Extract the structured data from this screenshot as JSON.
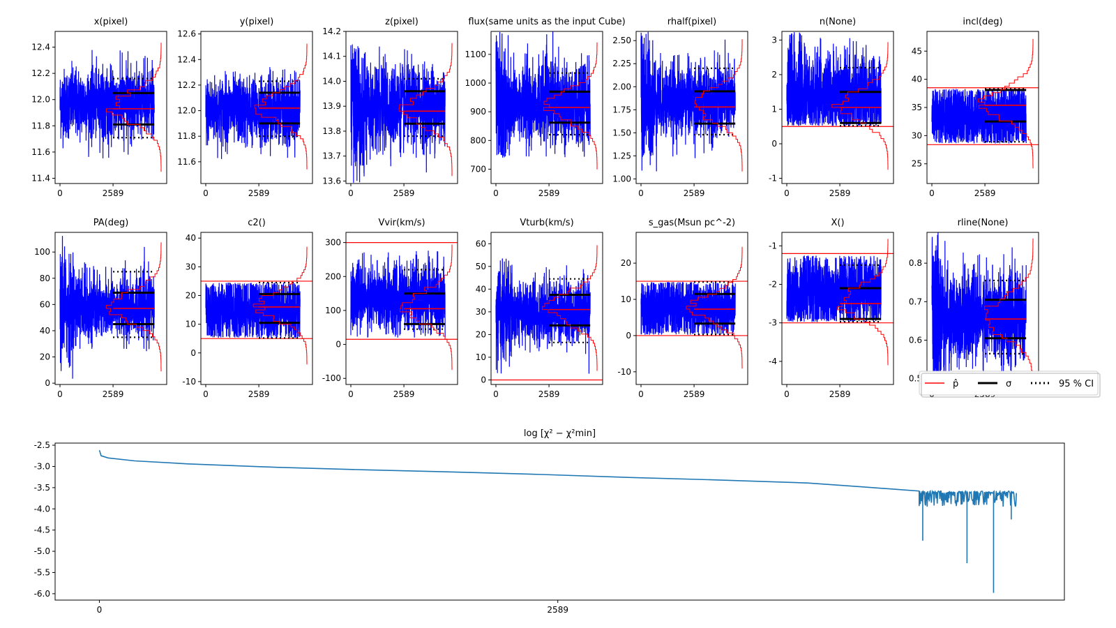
{
  "figure": {
    "legend": {
      "placement": "right of second-row last panel",
      "entries": [
        {
          "label": "p̂",
          "style": "solid",
          "color": "#ff0000"
        },
        {
          "label": "σ",
          "style": "solid-thick",
          "color": "#000000"
        },
        {
          "label": "95 % CI",
          "style": "dotted",
          "color": "#000000"
        }
      ]
    }
  },
  "chart_data": [
    {
      "type": "line",
      "title": "x(pixel)",
      "x_ticks": [
        "0",
        "2589"
      ],
      "y_ticks": [
        "11.4",
        "11.6",
        "11.8",
        "12.0",
        "12.2",
        "12.4"
      ],
      "ylim": [
        11.36,
        12.52
      ],
      "trace": {
        "center": 11.97,
        "spread": 0.13,
        "max": 12.38,
        "min": 11.55,
        "start_wide": false
      },
      "p_hat": 11.93,
      "sigma": [
        11.81,
        12.05
      ],
      "ci95": [
        11.71,
        12.16
      ],
      "colors": {
        "trace": "#0000ff",
        "stat": "#ff0000"
      }
    },
    {
      "type": "line",
      "title": "y(pixel)",
      "x_ticks": [
        "0",
        "2589"
      ],
      "y_ticks": [
        "11.6",
        "11.8",
        "12.0",
        "12.2",
        "12.4",
        "12.6"
      ],
      "ylim": [
        11.43,
        12.62
      ],
      "trace": {
        "center": 12.0,
        "spread": 0.13,
        "max": 12.39,
        "min": 11.62,
        "start_wide": false
      },
      "p_hat": 12.02,
      "sigma": [
        11.9,
        12.14
      ],
      "ci95": [
        11.8,
        12.23
      ],
      "colors": {
        "trace": "#0000ff",
        "stat": "#ff0000"
      }
    },
    {
      "type": "line",
      "title": "z(pixel)",
      "x_ticks": [
        "0",
        "2589"
      ],
      "y_ticks": [
        "13.6",
        "13.7",
        "13.8",
        "13.9",
        "14.0",
        "14.1",
        "14.2"
      ],
      "ylim": [
        13.59,
        14.2
      ],
      "trace": {
        "center": 13.9,
        "spread": 0.08,
        "max": 14.15,
        "min": 13.59,
        "start_wide": true
      },
      "p_hat": 13.88,
      "sigma": [
        13.83,
        13.96
      ],
      "ci95": [
        13.78,
        14.01
      ],
      "colors": {
        "trace": "#0000ff",
        "stat": "#ff0000"
      }
    },
    {
      "type": "line",
      "title": "flux(same units as the input Cube)",
      "x_ticks": [
        "0",
        "2589"
      ],
      "y_ticks": [
        "700",
        "800",
        "900",
        "1000",
        "1100"
      ],
      "ylim": [
        650,
        1180
      ],
      "trace": {
        "center": 930,
        "spread": 70,
        "max": 1180,
        "min": 740,
        "start_wide": true
      },
      "p_hat": 915,
      "sigma": [
        862,
        970
      ],
      "ci95": [
        820,
        1035
      ],
      "colors": {
        "trace": "#0000ff",
        "stat": "#ff0000"
      }
    },
    {
      "type": "line",
      "title": "rhalf(pixel)",
      "x_ticks": [
        "0",
        "2589"
      ],
      "y_ticks": [
        "1.00",
        "1.25",
        "1.50",
        "1.75",
        "2.00",
        "2.25",
        "2.50"
      ],
      "ylim": [
        0.95,
        2.6
      ],
      "trace": {
        "center": 1.85,
        "spread": 0.2,
        "max": 2.6,
        "min": 0.98,
        "start_wide": true
      },
      "p_hat": 1.78,
      "sigma": [
        1.6,
        1.95
      ],
      "ci95": [
        1.48,
        2.2
      ],
      "colors": {
        "trace": "#0000ff",
        "stat": "#ff0000"
      }
    },
    {
      "type": "line",
      "title": "n(None)",
      "x_ticks": [
        "0",
        "2589"
      ],
      "y_ticks": [
        "-1",
        "0",
        "1",
        "2",
        "3"
      ],
      "ylim": [
        -1.15,
        3.25
      ],
      "trace": {
        "center": 1.4,
        "spread": 0.6,
        "max": 3.25,
        "min": 0.52,
        "start_wide": true
      },
      "p_hat": 1.05,
      "sigma": [
        0.6,
        1.5
      ],
      "ci95": [
        0.52,
        2.2
      ],
      "bounds": [
        0.5
      ],
      "colors": {
        "trace": "#0000ff",
        "stat": "#ff0000"
      }
    },
    {
      "type": "line",
      "title": "incl(deg)",
      "x_ticks": [
        "0",
        "2589"
      ],
      "y_ticks": [
        "25",
        "30",
        "35",
        "40",
        "45"
      ],
      "ylim": [
        21.5,
        48.5
      ],
      "trace": {
        "center": 33.5,
        "spread": 3,
        "max": 38.3,
        "min": 28.6,
        "start_wide": false
      },
      "p_hat": 35.4,
      "sigma": [
        32.5,
        38.1
      ],
      "ci95": [
        28.9,
        38.3
      ],
      "bounds": [
        28.4,
        38.5
      ],
      "colors": {
        "trace": "#0000ff",
        "stat": "#ff0000"
      }
    },
    {
      "type": "line",
      "title": "PA(deg)",
      "x_ticks": [
        "0",
        "2589"
      ],
      "y_ticks": [
        "0",
        "20",
        "40",
        "60",
        "80",
        "100"
      ],
      "ylim": [
        -1,
        115
      ],
      "trace": {
        "center": 58,
        "spread": 12,
        "max": 115,
        "min": 3,
        "start_wide": true
      },
      "p_hat": 57,
      "sigma": [
        45,
        69
      ],
      "ci95": [
        35,
        85
      ],
      "colors": {
        "trace": "#0000ff",
        "stat": "#ff0000"
      }
    },
    {
      "type": "line",
      "title": "c2()",
      "x_ticks": [
        "0",
        "2589"
      ],
      "y_ticks": [
        "-10",
        "0",
        "10",
        "20",
        "30",
        "40"
      ],
      "ylim": [
        -11,
        42
      ],
      "trace": {
        "center": 15,
        "spread": 6,
        "max": 24.5,
        "min": 5.2,
        "start_wide": false
      },
      "p_hat": 16,
      "sigma": [
        10.5,
        20.5
      ],
      "ci95": [
        5.2,
        24.5
      ],
      "bounds": [
        5,
        25
      ],
      "colors": {
        "trace": "#0000ff",
        "stat": "#ff0000"
      }
    },
    {
      "type": "line",
      "title": "Vvir(km/s)",
      "x_ticks": [
        "0",
        "2589"
      ],
      "y_ticks": [
        "-100",
        "0",
        "100",
        "200",
        "300"
      ],
      "ylim": [
        -118,
        330
      ],
      "trace": {
        "center": 135,
        "spread": 50,
        "max": 280,
        "min": 20,
        "start_wide": false
      },
      "p_hat": 105,
      "sigma": [
        60,
        150
      ],
      "ci95": [
        45,
        220
      ],
      "bounds": [
        15,
        300
      ],
      "colors": {
        "trace": "#0000ff",
        "stat": "#ff0000"
      }
    },
    {
      "type": "line",
      "title": "Vturb(km/s)",
      "x_ticks": [
        "0",
        "2589"
      ],
      "y_ticks": [
        "0",
        "10",
        "20",
        "30",
        "40",
        "50",
        "60"
      ],
      "ylim": [
        -2,
        65
      ],
      "trace": {
        "center": 30,
        "spread": 7,
        "max": 55,
        "min": 2,
        "start_wide": true
      },
      "p_hat": 31,
      "sigma": [
        24,
        37.5
      ],
      "ci95": [
        16.5,
        44.5
      ],
      "bounds": [
        0
      ],
      "colors": {
        "trace": "#0000ff",
        "stat": "#ff0000"
      }
    },
    {
      "type": "line",
      "title": "s_gas(Msun pc^-2)",
      "x_ticks": [
        "0",
        "2589"
      ],
      "y_ticks": [
        "-10",
        "0",
        "10",
        "20"
      ],
      "ylim": [
        -13.5,
        28.5
      ],
      "trace": {
        "center": 7.5,
        "spread": 4.5,
        "max": 14.8,
        "min": 0.2,
        "start_wide": false
      },
      "p_hat": 7.3,
      "sigma": [
        3.3,
        11.5
      ],
      "ci95": [
        0.3,
        14.8
      ],
      "bounds": [
        0,
        15
      ],
      "colors": {
        "trace": "#0000ff",
        "stat": "#ff0000"
      }
    },
    {
      "type": "line",
      "title": "X()",
      "x_ticks": [
        "0",
        "2589"
      ],
      "y_ticks": [
        "-4",
        "-3",
        "-2",
        "-1"
      ],
      "ylim": [
        -4.6,
        -0.65
      ],
      "trace": {
        "center": -2.2,
        "spread": 0.5,
        "max": -1.25,
        "min": -2.98,
        "start_wide": false
      },
      "p_hat": -2.5,
      "sigma": [
        -2.9,
        -2.1
      ],
      "ci95": [
        -2.97,
        -1.5
      ],
      "bounds": [
        -3,
        -1.2
      ],
      "colors": {
        "trace": "#0000ff",
        "stat": "#ff0000"
      }
    },
    {
      "type": "line",
      "title": "rline(None)",
      "x_ticks": [
        "0",
        "2589"
      ],
      "y_ticks": [
        "0.5",
        "0.6",
        "0.7",
        "0.8"
      ],
      "ylim": [
        0.485,
        0.88
      ],
      "trace": {
        "center": 0.66,
        "spread": 0.06,
        "max": 0.88,
        "min": 0.5,
        "start_wide": true
      },
      "p_hat": 0.655,
      "sigma": [
        0.605,
        0.705
      ],
      "ci95": [
        0.565,
        0.755
      ],
      "bounds": [
        0.5
      ],
      "colors": {
        "trace": "#0000ff",
        "stat": "#ff0000"
      }
    },
    {
      "type": "line",
      "title": "log  [χ² − χ²min]",
      "x_ticks": [
        "0",
        "2589"
      ],
      "y_ticks": [
        "-6.0",
        "-5.5",
        "-5.0",
        "-4.5",
        "-4.0",
        "-3.5",
        "-3.0",
        "-2.5"
      ],
      "ylim": [
        -6.15,
        -2.45
      ],
      "x_range": [
        -250,
        5450
      ],
      "curve": [
        [
          0,
          -2.62
        ],
        [
          10,
          -2.75
        ],
        [
          50,
          -2.8
        ],
        [
          200,
          -2.87
        ],
        [
          500,
          -2.94
        ],
        [
          1000,
          -3.02
        ],
        [
          1500,
          -3.08
        ],
        [
          2000,
          -3.13
        ],
        [
          2500,
          -3.19
        ],
        [
          3000,
          -3.26
        ],
        [
          3500,
          -3.32
        ],
        [
          4000,
          -3.39
        ],
        [
          4300,
          -3.48
        ],
        [
          4630,
          -3.58
        ]
      ],
      "noise_region": {
        "x_start": 4630,
        "x_end": 5180,
        "top": -3.58,
        "typical_low": -3.95,
        "dips": [
          [
            4650,
            -4.75
          ],
          [
            4900,
            -5.28
          ],
          [
            5050,
            -5.98
          ],
          [
            5150,
            -4.25
          ]
        ]
      },
      "colors": {
        "line": "#1f77b4"
      }
    }
  ]
}
